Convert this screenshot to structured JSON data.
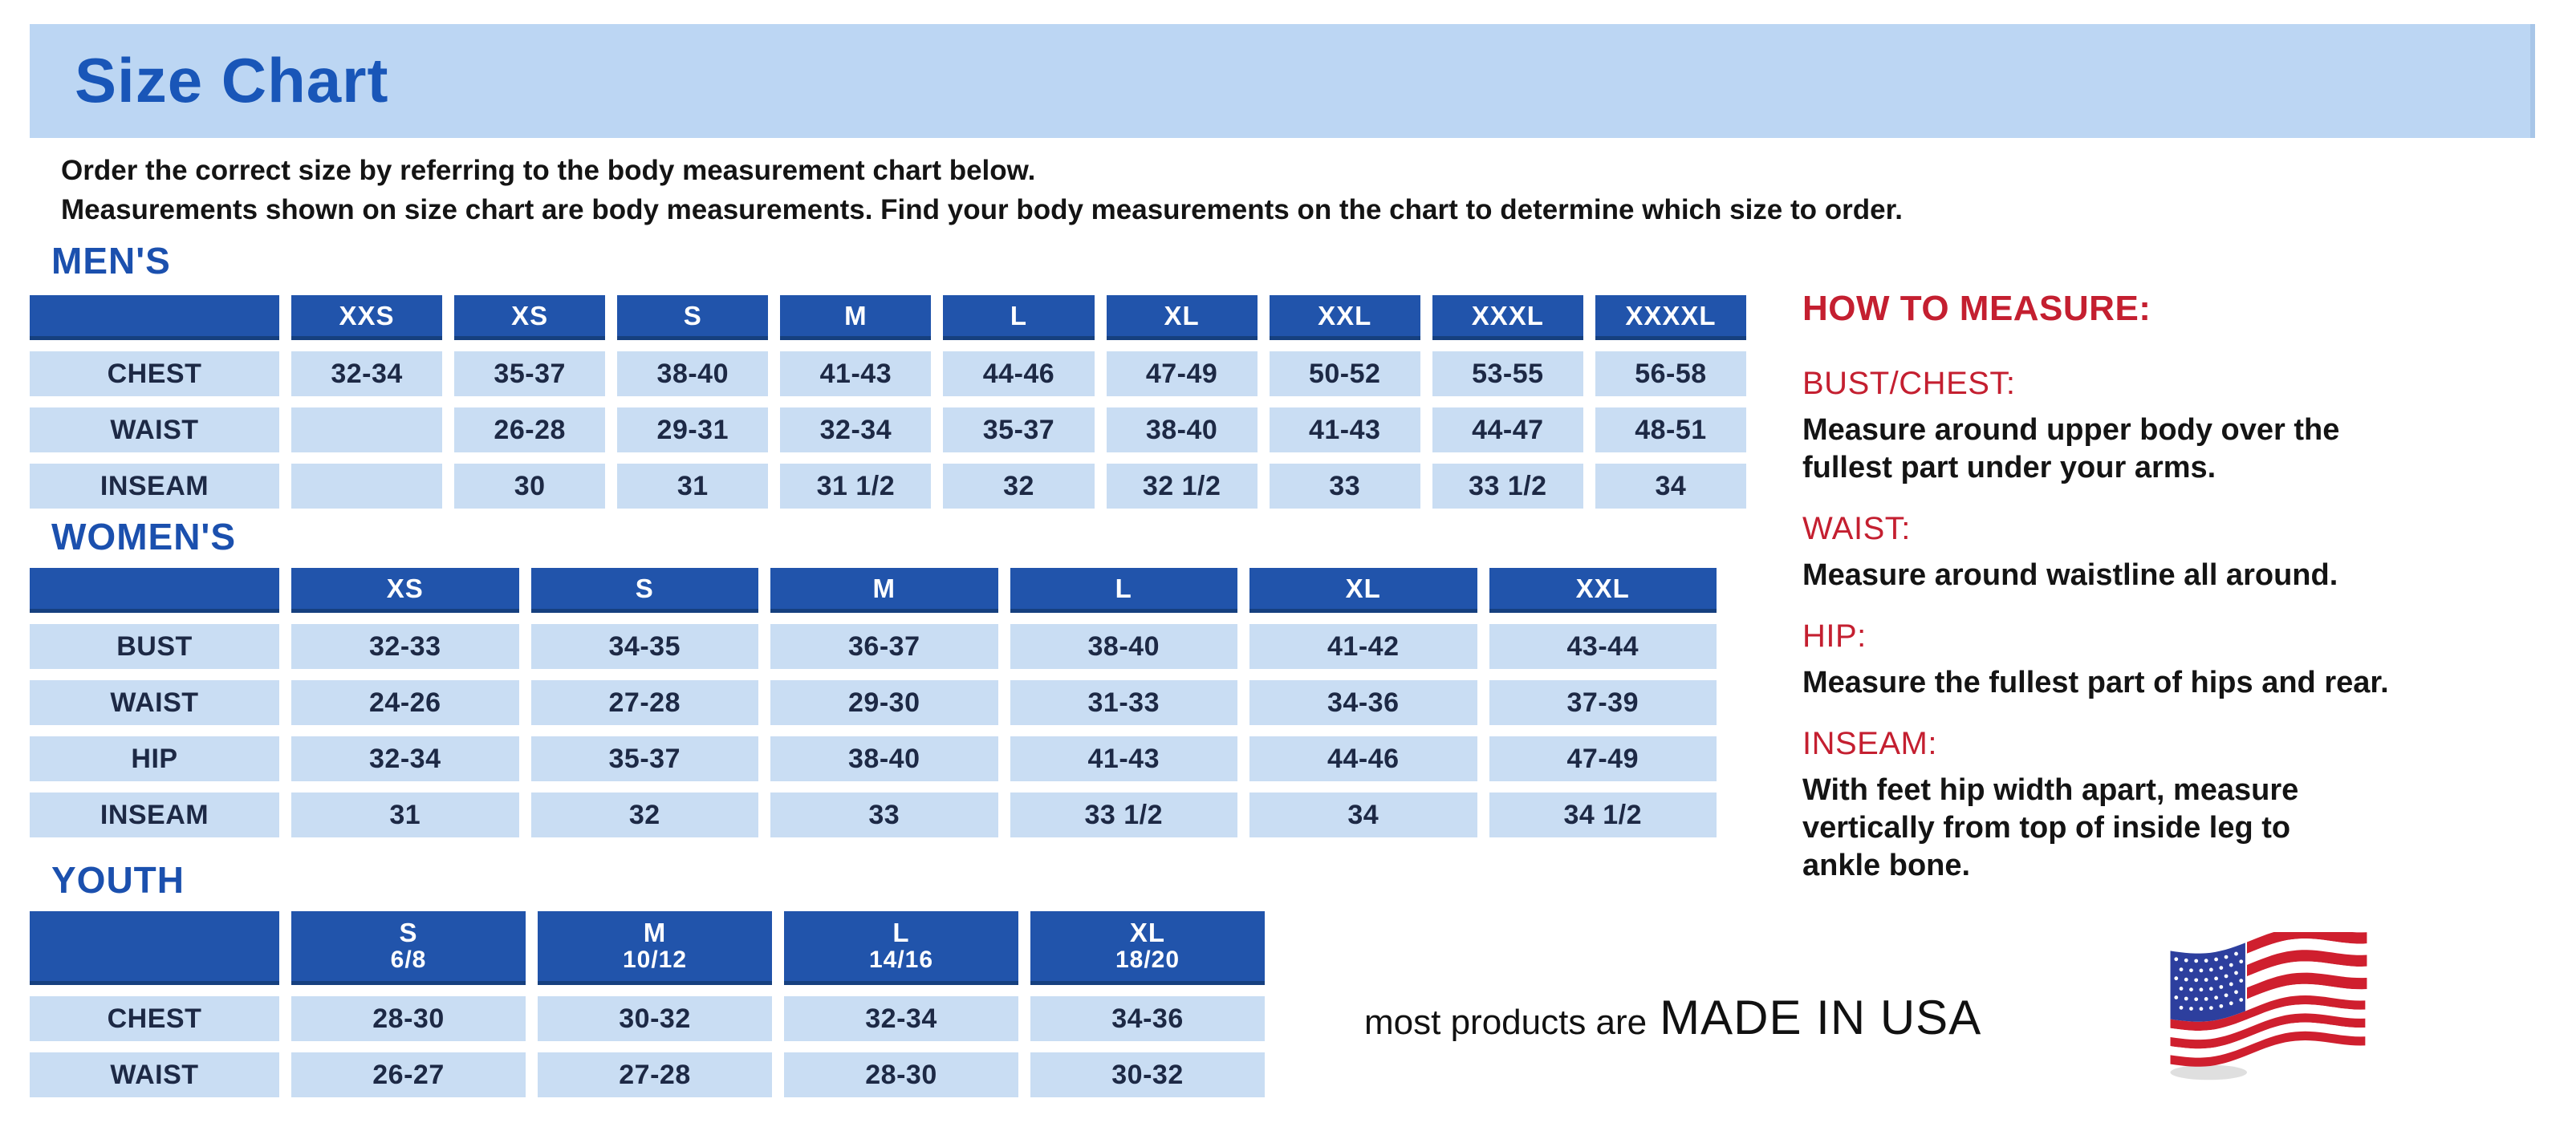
{
  "page": {
    "title": "Size Chart",
    "intro_line1": "Order the correct size by referring to the body measurement chart below.",
    "intro_line2": "Measurements shown on size chart are body measurements.  Find your body measurements on the chart to determine which size to order."
  },
  "colors": {
    "banner_bg": "#bcd6f3",
    "header_blue": "#2154ab",
    "cell_blue": "#c9ddf3",
    "heading_blue": "#1b50ae",
    "title_blue": "#1956b8",
    "accent_red": "#c41f30",
    "cell_text": "#1d2945"
  },
  "tables": {
    "mens": {
      "heading": "MEN'S",
      "columns": [
        "XXS",
        "XS",
        "S",
        "M",
        "L",
        "XL",
        "XXL",
        "XXXL",
        "XXXXL"
      ],
      "rows": [
        {
          "label": "CHEST",
          "values": [
            "32-34",
            "35-37",
            "38-40",
            "41-43",
            "44-46",
            "47-49",
            "50-52",
            "53-55",
            "56-58"
          ]
        },
        {
          "label": "WAIST",
          "values": [
            "",
            "26-28",
            "29-31",
            "32-34",
            "35-37",
            "38-40",
            "41-43",
            "44-47",
            "48-51"
          ]
        },
        {
          "label": "INSEAM",
          "values": [
            "",
            "30",
            "31",
            "31 1/2",
            "32",
            "32 1/2",
            "33",
            "33 1/2",
            "34"
          ]
        }
      ]
    },
    "womens": {
      "heading": "WOMEN'S",
      "columns": [
        "XS",
        "S",
        "M",
        "L",
        "XL",
        "XXL"
      ],
      "rows": [
        {
          "label": "BUST",
          "values": [
            "32-33",
            "34-35",
            "36-37",
            "38-40",
            "41-42",
            "43-44"
          ]
        },
        {
          "label": "WAIST",
          "values": [
            "24-26",
            "27-28",
            "29-30",
            "31-33",
            "34-36",
            "37-39"
          ]
        },
        {
          "label": "HIP",
          "values": [
            "32-34",
            "35-37",
            "38-40",
            "41-43",
            "44-46",
            "47-49"
          ]
        },
        {
          "label": "INSEAM",
          "values": [
            "31",
            "32",
            "33",
            "33 1/2",
            "34",
            "34 1/2"
          ]
        }
      ]
    },
    "youth": {
      "heading": "YOUTH",
      "columns": [
        {
          "size": "S",
          "range": "6/8"
        },
        {
          "size": "M",
          "range": "10/12"
        },
        {
          "size": "L",
          "range": "14/16"
        },
        {
          "size": "XL",
          "range": "18/20"
        }
      ],
      "rows": [
        {
          "label": "CHEST",
          "values": [
            "28-30",
            "30-32",
            "32-34",
            "34-36"
          ]
        },
        {
          "label": "WAIST",
          "values": [
            "26-27",
            "27-28",
            "28-30",
            "30-32"
          ]
        }
      ]
    }
  },
  "how_to_measure": {
    "heading": "HOW TO MEASURE:",
    "sections": [
      {
        "label": "BUST/CHEST:",
        "lines": [
          "Measure around upper body over the",
          "fullest part under your arms."
        ]
      },
      {
        "label": "WAIST:",
        "lines": [
          "Measure around waistline all around."
        ]
      },
      {
        "label": "HIP:",
        "lines": [
          "Measure the fullest part of hips and rear."
        ]
      },
      {
        "label": "INSEAM:",
        "lines": [
          "With feet hip width apart, measure",
          "vertically from top of inside leg to",
          "ankle bone."
        ]
      }
    ]
  },
  "footer": {
    "made_in_prefix": "most products are",
    "made_in_text": "MADE IN USA",
    "flag_icon": "usa-flag-icon",
    "flag_colors": {
      "red": "#cf1f2e",
      "white": "#ffffff",
      "navy": "#2d3f9e"
    }
  }
}
